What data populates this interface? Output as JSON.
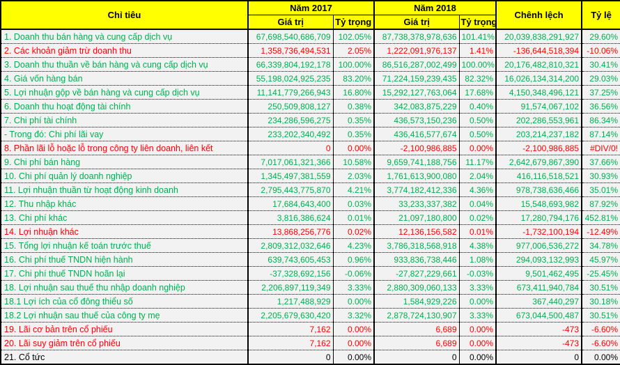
{
  "table": {
    "header": {
      "col_label": "Chỉ tiêu",
      "group_2017": "Năm 2017",
      "group_2018": "Năm 2018",
      "col_value_2017": "Giá trị",
      "col_weight_2017": "Tỷ trọng",
      "col_value_2018": "Giá trị",
      "col_weight_2018": "Tỷ trọng",
      "col_diff": "Chênh lệch",
      "col_ratio": "Tỷ lệ"
    },
    "colors": {
      "green": "#00B050",
      "red": "#FF0000",
      "black": "#000000",
      "header_bg": "#FFFF00",
      "row_bg": "#F2F2F2"
    },
    "rows": [
      {
        "label": "1. Doanh thu bán hàng và cung cấp dịch vụ",
        "color": "green",
        "v2017": "67,698,540,686,709",
        "p2017": "102.05%",
        "v2018": "87,738,378,978,636",
        "p2018": "101.41%",
        "diff": "20,039,838,291,927",
        "ratio": "29.60%"
      },
      {
        "label": "2. Các khoản giảm trừ doanh thu",
        "color": "red",
        "v2017": "1,358,736,494,531",
        "p2017": "2.05%",
        "v2018": "1,222,091,976,137",
        "p2018": "1.41%",
        "diff": "-136,644,518,394",
        "ratio": "-10.06%"
      },
      {
        "label": "3. Doanh thu thuần về bán hàng và cung cấp dịch vụ",
        "color": "green",
        "v2017": "66,339,804,192,178",
        "p2017": "100.00%",
        "v2018": "86,516,287,002,499",
        "p2018": "100.00%",
        "diff": "20,176,482,810,321",
        "ratio": "30.41%"
      },
      {
        "label": "4. Giá vốn hàng bán",
        "color": "green",
        "v2017": "55,198,024,925,235",
        "p2017": "83.20%",
        "v2018": "71,224,159,239,435",
        "p2018": "82.32%",
        "diff": "16,026,134,314,200",
        "ratio": "29.03%"
      },
      {
        "label": "5. Lợi nhuận gộp về bán hàng và cung cấp dịch vụ",
        "color": "green",
        "v2017": "11,141,779,266,943",
        "p2017": "16.80%",
        "v2018": "15,292,127,763,064",
        "p2018": "17.68%",
        "diff": "4,150,348,496,121",
        "ratio": "37.25%"
      },
      {
        "label": "6. Doanh thu hoạt động tài chính",
        "color": "green",
        "v2017": "250,509,808,127",
        "p2017": "0.38%",
        "v2018": "342,083,875,229",
        "p2018": "0.40%",
        "diff": "91,574,067,102",
        "ratio": "36.56%"
      },
      {
        "label": "7. Chi phí tài chính",
        "color": "green",
        "v2017": "234,286,596,275",
        "p2017": "0.35%",
        "v2018": "436,573,150,236",
        "p2018": "0.50%",
        "diff": "202,286,553,961",
        "ratio": "86.34%"
      },
      {
        "label": " - Trong đó: Chi phí lãi vay",
        "color": "green",
        "v2017": "233,202,340,492",
        "p2017": "0.35%",
        "v2018": "436,416,577,674",
        "p2018": "0.50%",
        "diff": "203,214,237,182",
        "ratio": "87.14%"
      },
      {
        "label": "8. Phần lãi lỗ hoặc lỗ trong công ty liên doanh, liên kết",
        "color": "red",
        "v2017": "0",
        "p2017": "0.00%",
        "v2018": "-2,100,986,885",
        "p2018": "0.00%",
        "diff": "-2,100,986,885",
        "ratio": "#DIV/0!"
      },
      {
        "label": "9. Chi phí bán hàng",
        "color": "green",
        "v2017": "7,017,061,321,366",
        "p2017": "10.58%",
        "v2018": "9,659,741,188,756",
        "p2018": "11.17%",
        "diff": "2,642,679,867,390",
        "ratio": "37.66%"
      },
      {
        "label": "10. Chi phí quản lý doanh nghiệp",
        "color": "green",
        "v2017": "1,345,497,381,559",
        "p2017": "2.03%",
        "v2018": "1,761,613,900,080",
        "p2018": "2.04%",
        "diff": "416,116,518,521",
        "ratio": "30.93%"
      },
      {
        "label": "11. Lợi nhuận thuần từ hoạt động kinh doanh",
        "color": "green",
        "v2017": "2,795,443,775,870",
        "p2017": "4.21%",
        "v2018": "3,774,182,412,336",
        "p2018": "4.36%",
        "diff": "978,738,636,466",
        "ratio": "35.01%"
      },
      {
        "label": "12. Thu nhập khác",
        "color": "green",
        "v2017": "17,684,643,400",
        "p2017": "0.03%",
        "v2018": "33,233,337,382",
        "p2018": "0.04%",
        "diff": "15,548,693,982",
        "ratio": "87.92%"
      },
      {
        "label": "13. Chi phí khác",
        "color": "green",
        "v2017": "3,816,386,624",
        "p2017": "0.01%",
        "v2018": "21,097,180,800",
        "p2018": "0.02%",
        "diff": "17,280,794,176",
        "ratio": "452.81%"
      },
      {
        "label": "14. Lợi nhuận khác",
        "color": "red",
        "v2017": "13,868,256,776",
        "p2017": "0.02%",
        "v2018": "12,136,156,582",
        "p2018": "0.01%",
        "diff": "-1,732,100,194",
        "ratio": "-12.49%"
      },
      {
        "label": "15. Tổng lợi nhuận kế toán trước thuế",
        "color": "green",
        "v2017": "2,809,312,032,646",
        "p2017": "4.23%",
        "v2018": "3,786,318,568,918",
        "p2018": "4.38%",
        "diff": "977,006,536,272",
        "ratio": "34.78%"
      },
      {
        "label": "16. Chi phí thuế TNDN hiện hành",
        "color": "green",
        "v2017": "639,743,605,453",
        "p2017": "0.96%",
        "v2018": "933,836,738,446",
        "p2018": "1.08%",
        "diff": "294,093,132,993",
        "ratio": "45.97%"
      },
      {
        "label": "17. Chi phí thuế TNDN hoãn lại",
        "color": "green",
        "v2017": "-37,328,692,156",
        "p2017": "-0.06%",
        "v2018": "-27,827,229,661",
        "p2018": "-0.03%",
        "diff": "9,501,462,495",
        "ratio": "-25.45%"
      },
      {
        "label": "18. Lợi nhuận sau thuế thu nhập doanh nghiệp",
        "color": "green",
        "v2017": "2,206,897,119,349",
        "p2017": "3.33%",
        "v2018": "2,880,309,060,133",
        "p2018": "3.33%",
        "diff": "673,411,940,784",
        "ratio": "30.51%"
      },
      {
        "label": "18.1 Lợi ích của cổ đông thiểu số",
        "color": "green",
        "v2017": "1,217,488,929",
        "p2017": "0.00%",
        "v2018": "1,584,929,226",
        "p2018": "0.00%",
        "diff": "367,440,297",
        "ratio": "30.18%"
      },
      {
        "label": "18.2 Lợi nhuận sau thuế của công ty mẹ",
        "color": "green",
        "v2017": "2,205,679,630,420",
        "p2017": "3.32%",
        "v2018": "2,878,724,130,907",
        "p2018": "3.33%",
        "diff": "673,044,500,487",
        "ratio": "30.51%"
      },
      {
        "label": "19. Lãi cơ bản trên cổ phiếu",
        "color": "red",
        "v2017": "7,162",
        "p2017": "0.00%",
        "v2018": "6,689",
        "p2018": "0.00%",
        "diff": "-473",
        "ratio": "-6.60%"
      },
      {
        "label": "20. Lãi suy giảm trên cổ phiếu",
        "color": "red",
        "v2017": "7,162",
        "p2017": "0.00%",
        "v2018": "6,689",
        "p2018": "0.00%",
        "diff": "-473",
        "ratio": "-6.60%"
      },
      {
        "label": "21. Cổ tức",
        "color": "black",
        "v2017": "0",
        "p2017": "0.00%",
        "v2018": "0",
        "p2018": "0.00%",
        "diff": "0",
        "ratio": "0.00%"
      }
    ]
  }
}
